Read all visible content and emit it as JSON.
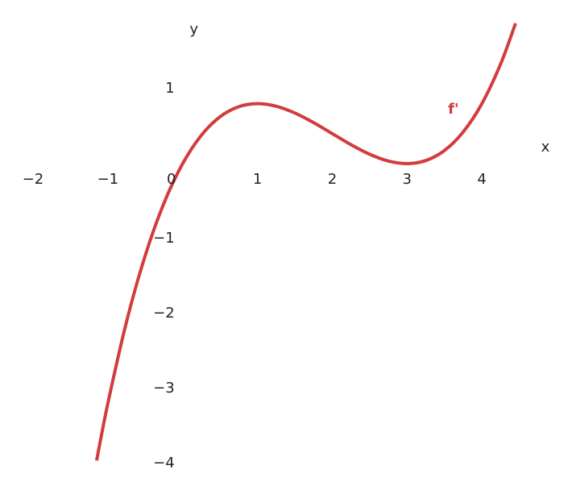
{
  "chart_data": {
    "type": "line",
    "xlabel": "x",
    "ylabel": "y",
    "x": [
      -1.15,
      -1,
      -0.75,
      -0.5,
      -0.25,
      0,
      0.25,
      0.5,
      0.75,
      1,
      1.25,
      1.5,
      1.75,
      2,
      2.25,
      2.5,
      2.75,
      3,
      3.25,
      3.5,
      3.75,
      4,
      4.25,
      4.45
    ],
    "series": [
      {
        "name": "f'",
        "color": "#d23c3c",
        "values": [
          -3.961,
          -3.2,
          -2.109,
          -1.225,
          -0.528,
          0,
          0.378,
          0.625,
          0.759,
          0.8,
          0.766,
          0.675,
          0.547,
          0.4,
          0.253,
          0.125,
          0.034,
          0,
          0.041,
          0.175,
          0.422,
          0.8,
          1.328,
          1.871
        ]
      }
    ],
    "xlim": [
      -2,
      5
    ],
    "ylim": [
      -4,
      2
    ],
    "xticks": [
      {
        "value": -2,
        "label": "−2"
      },
      {
        "value": -1,
        "label": "−1"
      },
      0,
      1,
      2,
      3,
      4
    ],
    "yticks": [
      {
        "value": -4,
        "label": "−4"
      },
      {
        "value": -3,
        "label": "−3"
      },
      {
        "value": -2,
        "label": "−2"
      },
      {
        "value": -1,
        "label": "−1"
      },
      1
    ],
    "grid": true
  }
}
